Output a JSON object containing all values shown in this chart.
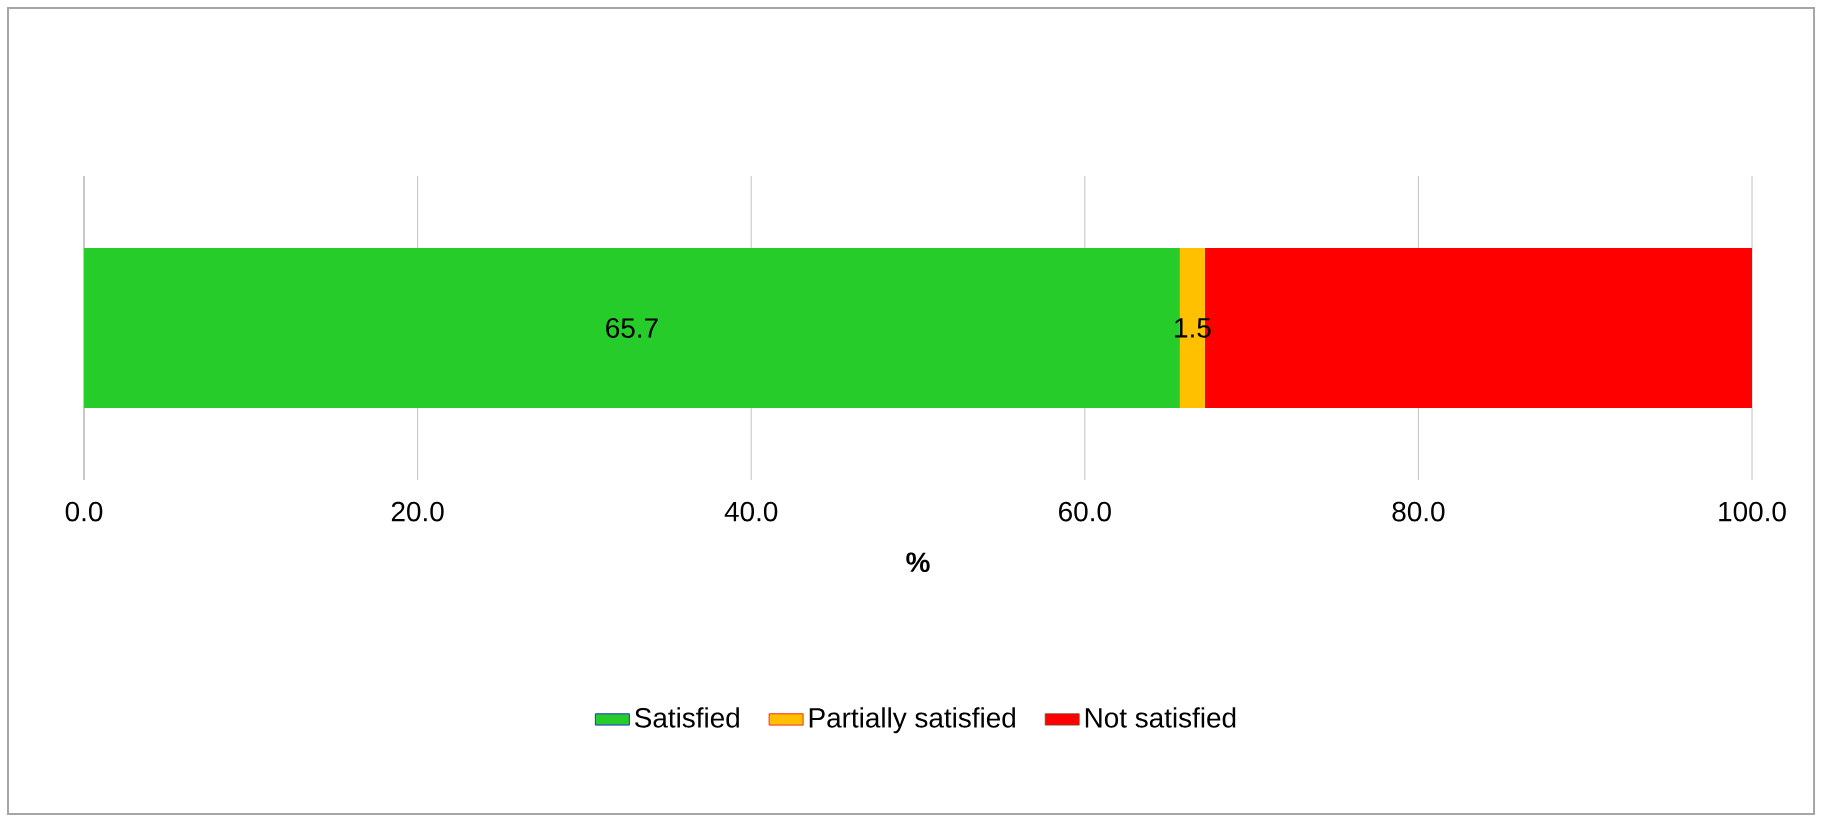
{
  "chart_data": {
    "type": "bar",
    "orientation": "horizontal",
    "stacked": true,
    "categories": [
      null
    ],
    "xlabel": "%",
    "series": [
      {
        "name": "Satisfied",
        "color": "#26cc2a",
        "values": [
          65.7
        ],
        "value_labels": [
          "65.7"
        ]
      },
      {
        "name": "Partially satisfied",
        "color": "#ffc000",
        "values": [
          1.5
        ],
        "value_labels": [
          "1.5"
        ]
      },
      {
        "name": "Not satisfied",
        "color": "#ff0000",
        "values": [
          32.8
        ],
        "value_labels": [
          null
        ]
      }
    ],
    "xlim": [
      0,
      100
    ],
    "xticks": [
      {
        "value": 0,
        "label": "0.0"
      },
      {
        "value": 20,
        "label": "20.0"
      },
      {
        "value": 40,
        "label": "40.0"
      },
      {
        "value": 60,
        "label": "60.0"
      },
      {
        "value": 80,
        "label": "80.0"
      },
      {
        "value": 100,
        "label": "100.0"
      }
    ],
    "grid": "x",
    "legend": "bottom"
  }
}
